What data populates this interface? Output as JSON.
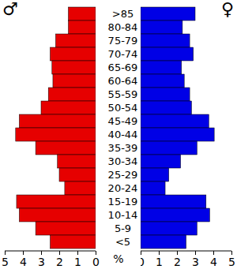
{
  "chart_data": {
    "type": "bar",
    "orientation": "horizontal",
    "categories": [
      ">85",
      "80-84",
      "75-79",
      "70-74",
      "65-69",
      "60-64",
      "55-59",
      "50-54",
      "45-49",
      "40-44",
      "35-39",
      "30-34",
      "25-29",
      "20-24",
      "15-19",
      "10-14",
      "5-9",
      "<5"
    ],
    "series": [
      {
        "name": "♂",
        "color": "#e60000",
        "values": [
          1.5,
          1.5,
          2.2,
          2.5,
          2.4,
          2.35,
          2.6,
          3.0,
          4.2,
          4.4,
          3.3,
          2.1,
          2.0,
          1.7,
          4.35,
          4.2,
          3.3,
          2.5
        ]
      },
      {
        "name": "♀",
        "color": "#0000e6",
        "values": [
          3.0,
          2.3,
          2.7,
          2.9,
          2.25,
          2.4,
          2.7,
          2.8,
          3.75,
          4.05,
          3.1,
          2.2,
          1.55,
          1.35,
          3.6,
          3.8,
          3.1,
          2.5
        ]
      }
    ],
    "xlabel": "%",
    "xlim": [
      0,
      5
    ],
    "xticks": [
      0,
      1,
      2,
      3,
      4,
      5
    ]
  }
}
